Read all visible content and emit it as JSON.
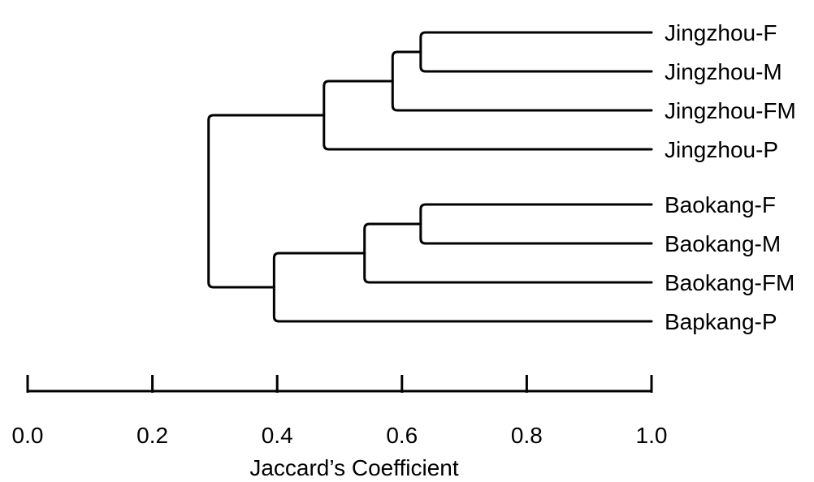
{
  "dendrogram": {
    "leaves": [
      {
        "id": "jF",
        "label": "Jingzhou-F"
      },
      {
        "id": "jM",
        "label": "Jingzhou-M"
      },
      {
        "id": "jFM",
        "label": "Jingzhou-FM"
      },
      {
        "id": "jP",
        "label": "Jingzhou-P"
      },
      {
        "id": "bF",
        "label": "Baokang-F"
      },
      {
        "id": "bM",
        "label": "Baokang-M"
      },
      {
        "id": "bFM",
        "label": "Baokang-FM"
      },
      {
        "id": "bP",
        "label": "Bapkang-P"
      }
    ],
    "merges": [
      {
        "id": "n1",
        "children": [
          "jF",
          "jM"
        ],
        "height": 0.63
      },
      {
        "id": "n2",
        "children": [
          "n1",
          "jFM"
        ],
        "height": 0.585
      },
      {
        "id": "n3",
        "children": [
          "n2",
          "jP"
        ],
        "height": 0.475
      },
      {
        "id": "n4",
        "children": [
          "bF",
          "bM"
        ],
        "height": 0.63
      },
      {
        "id": "n5",
        "children": [
          "n4",
          "bFM"
        ],
        "height": 0.54
      },
      {
        "id": "n6",
        "children": [
          "n5",
          "bP"
        ],
        "height": 0.395
      },
      {
        "id": "n7",
        "children": [
          "n3",
          "n6"
        ],
        "height": 0.29
      }
    ],
    "leaf_height": 1.0
  },
  "axis": {
    "label": "Jaccard’s Coefficient",
    "range": [
      0,
      1
    ],
    "ticks": [
      "0.0",
      "0.2",
      "0.4",
      "0.6",
      "0.8",
      "1.0"
    ]
  }
}
